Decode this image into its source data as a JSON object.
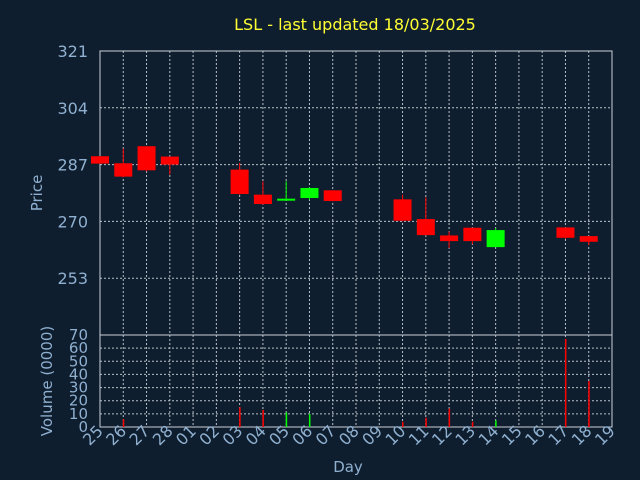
{
  "chart_data": {
    "title": "LSL - last updated 18/03/2025",
    "xlabel": "Day",
    "x_ticks": [
      "25",
      "26",
      "27",
      "28",
      "01",
      "02",
      "03",
      "04",
      "05",
      "06",
      "07",
      "08",
      "09",
      "10",
      "11",
      "12",
      "13",
      "14",
      "15",
      "16",
      "17",
      "18",
      "19"
    ],
    "price_panel": {
      "type": "candlestick",
      "ylabel": "Price",
      "ylim": [
        236,
        321
      ],
      "yticks": [
        253,
        270,
        287,
        304,
        321
      ],
      "grid": true,
      "candles": [
        {
          "day": "25",
          "open": 289.5,
          "high": 289.5,
          "low": 287.2,
          "close": 287.3
        },
        {
          "day": "26",
          "open": 287.4,
          "high": 291.8,
          "low": 283.2,
          "close": 283.4
        },
        {
          "day": "27",
          "open": 292.5,
          "high": 292.5,
          "low": 285.0,
          "close": 285.3
        },
        {
          "day": "28",
          "open": 289.4,
          "high": 289.4,
          "low": 284.0,
          "close": 287.0
        },
        {
          "day": "03",
          "open": 285.5,
          "high": 287.5,
          "low": 278.0,
          "close": 278.2
        },
        {
          "day": "04",
          "open": 278.0,
          "high": 282.0,
          "low": 275.0,
          "close": 275.2
        },
        {
          "day": "05",
          "open": 276.2,
          "high": 282.0,
          "low": 276.2,
          "close": 276.8
        },
        {
          "day": "06",
          "open": 277.0,
          "high": 280.2,
          "low": 276.5,
          "close": 280.0
        },
        {
          "day": "07",
          "open": 279.3,
          "high": 279.3,
          "low": 276.0,
          "close": 276.1
        },
        {
          "day": "10",
          "open": 276.6,
          "high": 278.0,
          "low": 270.0,
          "close": 270.2
        },
        {
          "day": "11",
          "open": 270.7,
          "high": 277.2,
          "low": 265.8,
          "close": 265.9
        },
        {
          "day": "12",
          "open": 265.8,
          "high": 267.0,
          "low": 262.0,
          "close": 264.1
        },
        {
          "day": "13",
          "open": 268.1,
          "high": 268.1,
          "low": 263.2,
          "close": 264.1
        },
        {
          "day": "14",
          "open": 262.3,
          "high": 268.0,
          "low": 262.3,
          "close": 267.4
        },
        {
          "day": "17",
          "open": 268.2,
          "high": 268.2,
          "low": 264.8,
          "close": 265.1
        },
        {
          "day": "18",
          "open": 265.6,
          "high": 265.6,
          "low": 262.9,
          "close": 263.9
        }
      ]
    },
    "volume_panel": {
      "type": "bar",
      "ylabel": "Volume (0000)",
      "ylim": [
        0,
        70
      ],
      "yticks": [
        0,
        10,
        20,
        30,
        40,
        50,
        60,
        70
      ],
      "grid": true,
      "bars": [
        {
          "day": "26",
          "value": 6,
          "color": "#ff0000"
        },
        {
          "day": "03",
          "value": 15,
          "color": "#ff0000"
        },
        {
          "day": "04",
          "value": 13,
          "color": "#ff0000"
        },
        {
          "day": "05",
          "value": 11,
          "color": "#00ff00"
        },
        {
          "day": "06",
          "value": 10,
          "color": "#00ff00"
        },
        {
          "day": "10",
          "value": 4,
          "color": "#ff0000"
        },
        {
          "day": "11",
          "value": 7,
          "color": "#ff0000"
        },
        {
          "day": "12",
          "value": 14,
          "color": "#ff0000"
        },
        {
          "day": "13",
          "value": 4,
          "color": "#ff0000"
        },
        {
          "day": "14",
          "value": 5,
          "color": "#00ff00"
        },
        {
          "day": "17",
          "value": 67,
          "color": "#ff0000"
        },
        {
          "day": "18",
          "value": 35,
          "color": "#ff0000"
        }
      ]
    },
    "colors": {
      "background": "#0f1e2e",
      "up": "#00ff00",
      "down": "#ff0000",
      "title": "#ffff33",
      "axis_text": "#8fb0d0"
    }
  }
}
